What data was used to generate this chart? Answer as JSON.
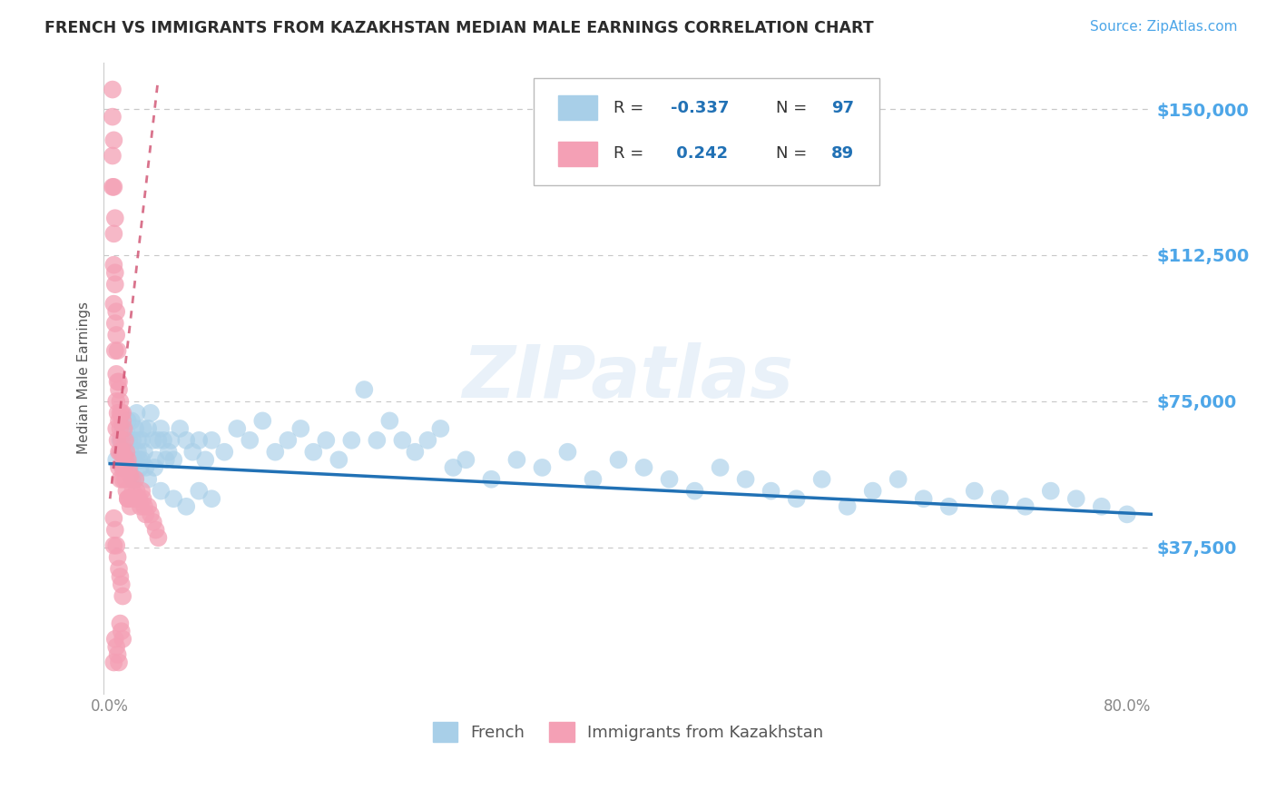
{
  "title": "FRENCH VS IMMIGRANTS FROM KAZAKHSTAN MEDIAN MALE EARNINGS CORRELATION CHART",
  "source": "Source: ZipAtlas.com",
  "ylabel": "Median Male Earnings",
  "xlim": [
    -0.005,
    0.82
  ],
  "ylim": [
    0,
    162000
  ],
  "yticks": [
    37500,
    75000,
    112500,
    150000
  ],
  "ytick_labels": [
    "$37,500",
    "$75,000",
    "$112,500",
    "$150,000"
  ],
  "xticks": [
    0.0,
    0.1,
    0.2,
    0.3,
    0.4,
    0.5,
    0.6,
    0.7,
    0.8
  ],
  "xtick_labels": [
    "0.0%",
    "",
    "",
    "",
    "",
    "",
    "",
    "",
    "80.0%"
  ],
  "legend_label1": "French",
  "legend_label2": "Immigrants from Kazakhstan",
  "blue_color": "#a8cfe8",
  "pink_color": "#f4a0b5",
  "blue_line_color": "#2171b5",
  "pink_line_color": "#d05070",
  "title_color": "#2c2c2c",
  "tick_color": "#4da6e8",
  "grid_color": "#c8c8c8",
  "watermark": "ZIPatlas",
  "blue_scatter_x": [
    0.005,
    0.008,
    0.01,
    0.01,
    0.012,
    0.013,
    0.014,
    0.015,
    0.016,
    0.016,
    0.017,
    0.018,
    0.019,
    0.02,
    0.02,
    0.021,
    0.022,
    0.023,
    0.024,
    0.025,
    0.026,
    0.027,
    0.028,
    0.03,
    0.032,
    0.034,
    0.036,
    0.038,
    0.04,
    0.042,
    0.044,
    0.046,
    0.048,
    0.05,
    0.055,
    0.06,
    0.065,
    0.07,
    0.075,
    0.08,
    0.09,
    0.1,
    0.11,
    0.12,
    0.13,
    0.14,
    0.15,
    0.16,
    0.17,
    0.18,
    0.19,
    0.2,
    0.21,
    0.22,
    0.23,
    0.24,
    0.25,
    0.26,
    0.27,
    0.28,
    0.3,
    0.32,
    0.34,
    0.36,
    0.38,
    0.4,
    0.42,
    0.44,
    0.46,
    0.48,
    0.5,
    0.52,
    0.54,
    0.56,
    0.58,
    0.6,
    0.62,
    0.64,
    0.66,
    0.68,
    0.7,
    0.72,
    0.74,
    0.76,
    0.78,
    0.8,
    0.015,
    0.018,
    0.022,
    0.025,
    0.03,
    0.035,
    0.04,
    0.05,
    0.06,
    0.07,
    0.08
  ],
  "blue_scatter_y": [
    60000,
    65000,
    68000,
    58000,
    62000,
    67000,
    70000,
    65000,
    62000,
    58000,
    70000,
    65000,
    60000,
    68000,
    55000,
    72000,
    65000,
    60000,
    58000,
    65000,
    68000,
    62000,
    58000,
    68000,
    72000,
    65000,
    60000,
    65000,
    68000,
    65000,
    60000,
    62000,
    65000,
    60000,
    68000,
    65000,
    62000,
    65000,
    60000,
    65000,
    62000,
    68000,
    65000,
    70000,
    62000,
    65000,
    68000,
    62000,
    65000,
    60000,
    65000,
    78000,
    65000,
    70000,
    65000,
    62000,
    65000,
    68000,
    58000,
    60000,
    55000,
    60000,
    58000,
    62000,
    55000,
    60000,
    58000,
    55000,
    52000,
    58000,
    55000,
    52000,
    50000,
    55000,
    48000,
    52000,
    55000,
    50000,
    48000,
    52000,
    50000,
    48000,
    52000,
    50000,
    48000,
    46000,
    58000,
    55000,
    62000,
    60000,
    55000,
    58000,
    52000,
    50000,
    48000,
    52000,
    50000
  ],
  "pink_scatter_x": [
    0.002,
    0.002,
    0.002,
    0.003,
    0.003,
    0.003,
    0.003,
    0.004,
    0.004,
    0.004,
    0.005,
    0.005,
    0.005,
    0.005,
    0.006,
    0.006,
    0.006,
    0.007,
    0.007,
    0.007,
    0.007,
    0.008,
    0.008,
    0.008,
    0.008,
    0.009,
    0.009,
    0.01,
    0.01,
    0.01,
    0.011,
    0.011,
    0.012,
    0.012,
    0.013,
    0.013,
    0.014,
    0.014,
    0.015,
    0.015,
    0.016,
    0.016,
    0.017,
    0.018,
    0.019,
    0.02,
    0.021,
    0.022,
    0.023,
    0.024,
    0.025,
    0.026,
    0.027,
    0.028,
    0.03,
    0.032,
    0.034,
    0.036,
    0.038,
    0.002,
    0.003,
    0.004,
    0.004,
    0.005,
    0.006,
    0.007,
    0.008,
    0.009,
    0.01,
    0.01,
    0.012,
    0.014,
    0.003,
    0.003,
    0.004,
    0.005,
    0.006,
    0.007,
    0.008,
    0.009,
    0.01,
    0.003,
    0.004,
    0.005,
    0.006,
    0.007,
    0.008,
    0.009,
    0.01
  ],
  "pink_scatter_y": [
    148000,
    138000,
    130000,
    130000,
    118000,
    110000,
    100000,
    105000,
    95000,
    88000,
    92000,
    82000,
    75000,
    68000,
    80000,
    72000,
    65000,
    78000,
    70000,
    62000,
    58000,
    75000,
    68000,
    62000,
    55000,
    72000,
    62000,
    70000,
    62000,
    55000,
    68000,
    58000,
    65000,
    55000,
    62000,
    52000,
    60000,
    50000,
    58000,
    50000,
    56000,
    48000,
    55000,
    52000,
    50000,
    55000,
    52000,
    50000,
    50000,
    48000,
    52000,
    50000,
    48000,
    46000,
    48000,
    46000,
    44000,
    42000,
    40000,
    155000,
    142000,
    122000,
    108000,
    98000,
    88000,
    80000,
    72000,
    65000,
    58000,
    72000,
    60000,
    50000,
    45000,
    38000,
    42000,
    38000,
    35000,
    32000,
    30000,
    28000,
    25000,
    8000,
    14000,
    12000,
    10000,
    8000,
    18000,
    16000,
    14000
  ],
  "blue_trend": [
    0.0,
    0.82,
    59000,
    46000
  ],
  "pink_trend": [
    0.0,
    0.038,
    50000,
    158000
  ]
}
